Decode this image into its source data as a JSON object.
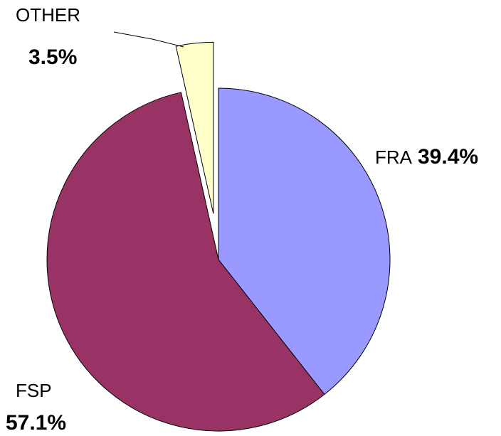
{
  "chart_data": {
    "type": "pie",
    "categories": [
      "FRA",
      "FSP",
      "OTHER"
    ],
    "values": [
      39.4,
      57.1,
      3.5
    ],
    "value_labels": [
      "39.4%",
      "57.1%",
      "3.5%"
    ],
    "colors": [
      "#9999ff",
      "#993366",
      "#ffffcc"
    ]
  }
}
